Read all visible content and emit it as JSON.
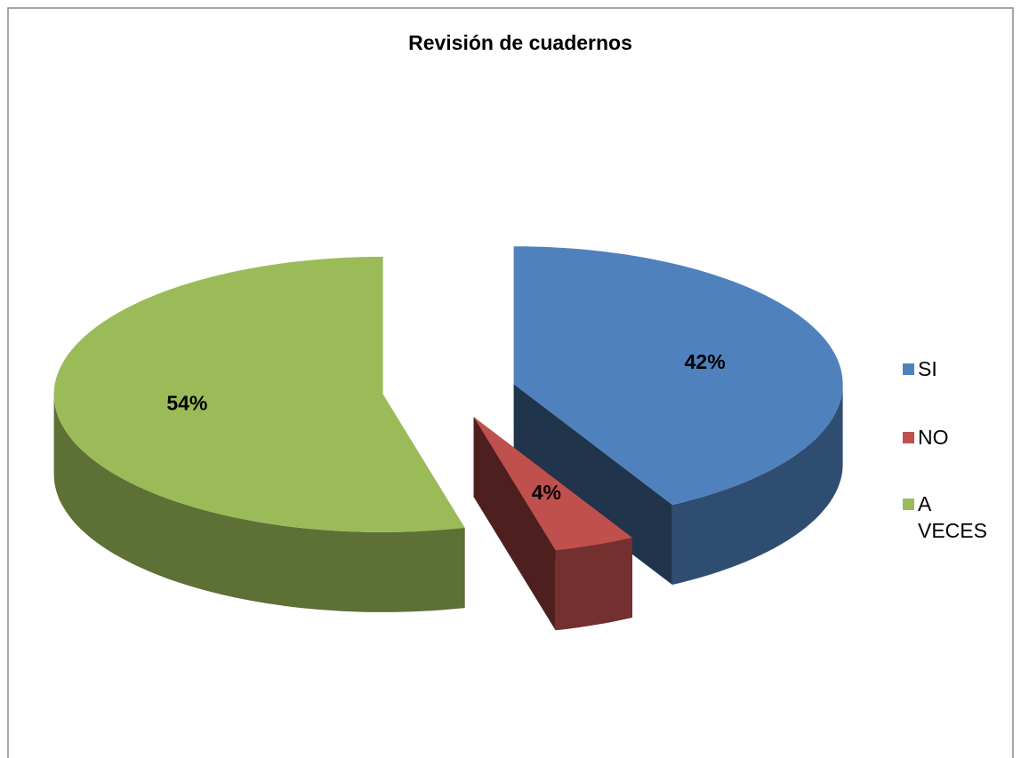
{
  "chart_data": {
    "type": "pie",
    "title": "Revisión de cuadernos",
    "categories": [
      "SI",
      "NO",
      "A VECES"
    ],
    "values": [
      42,
      4,
      54
    ],
    "value_labels": [
      "42%",
      "4%",
      "54%"
    ],
    "colors": [
      "#4f81bd",
      "#c0504d",
      "#9bbb59"
    ],
    "legend": "right"
  }
}
